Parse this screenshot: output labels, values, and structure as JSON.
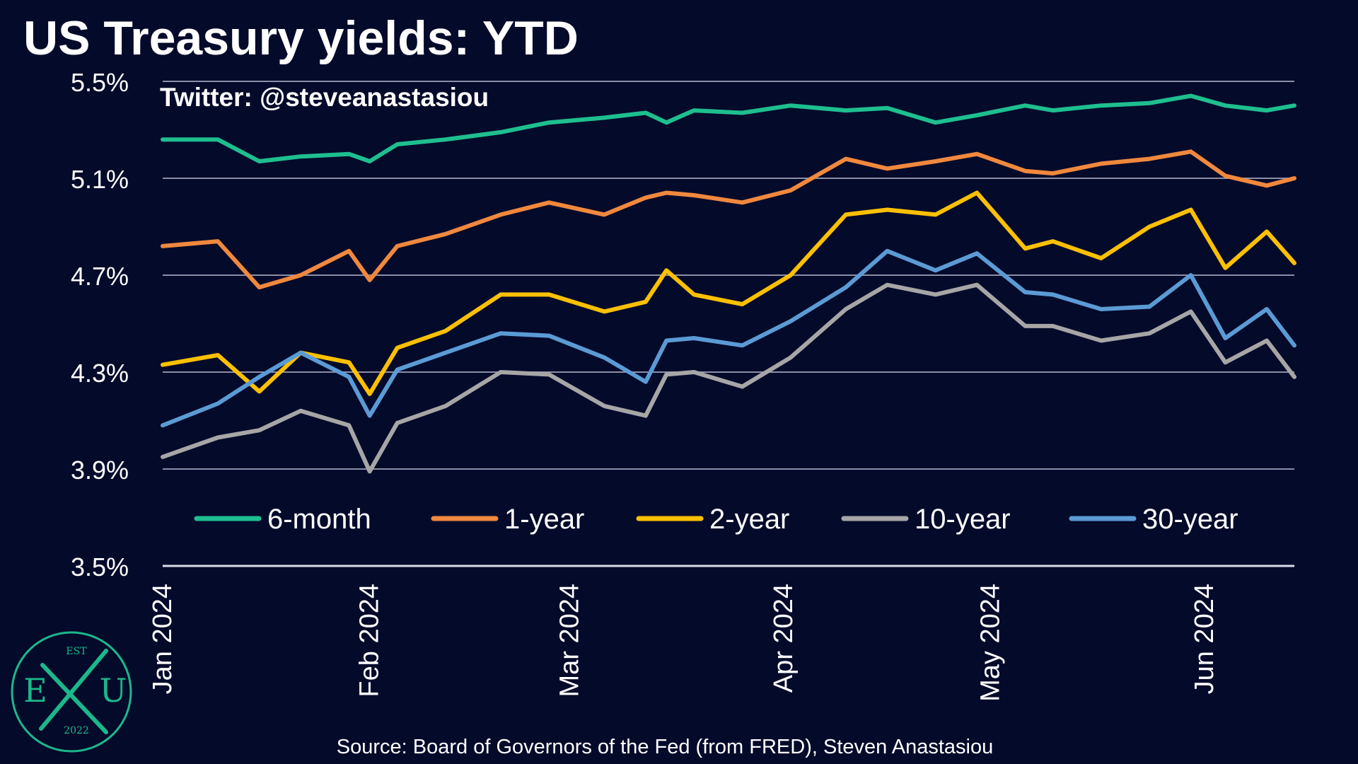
{
  "title": "US Treasury yields: YTD",
  "watermark": "Twitter: @steveanastasiou",
  "source": "Source: Board of Governors of the Fed (from FRED), Steven Anastasiou",
  "logo": {
    "top": "EST",
    "left": "E",
    "right": "U",
    "bottom": "2022"
  },
  "colors": {
    "background": "#040a2a",
    "grid": "#8a8fa6",
    "axis": "#d8dbe6",
    "logo": "#1bb88c"
  },
  "chart_data": {
    "type": "line",
    "title": "US Treasury yields: YTD",
    "xlabel": "",
    "ylabel": "",
    "ylim": [
      3.5,
      5.5
    ],
    "yticks": [
      3.5,
      3.9,
      4.3,
      4.7,
      5.1,
      5.5
    ],
    "ytick_labels": [
      "3.5%",
      "3.9%",
      "4.3%",
      "4.7%",
      "5.1%",
      "5.5%"
    ],
    "xlim": [
      "2024-01-02",
      "2024-06-14"
    ],
    "xticks": [
      "2024-01-01",
      "2024-02-01",
      "2024-03-01",
      "2024-04-01",
      "2024-05-01",
      "2024-06-01"
    ],
    "xtick_labels": [
      "Jan 2024",
      "Feb 2024",
      "Mar 2024",
      "Apr 2024",
      "May 2024",
      "Jun 2024"
    ],
    "grid": true,
    "legend_position": "bottom",
    "series": [
      {
        "name": "6-month",
        "color": "#1ebf8f",
        "points": [
          [
            "2024-01-02",
            5.26
          ],
          [
            "2024-01-10",
            5.26
          ],
          [
            "2024-01-16",
            5.17
          ],
          [
            "2024-01-22",
            5.19
          ],
          [
            "2024-01-29",
            5.2
          ],
          [
            "2024-02-01",
            5.17
          ],
          [
            "2024-02-05",
            5.24
          ],
          [
            "2024-02-12",
            5.26
          ],
          [
            "2024-02-20",
            5.29
          ],
          [
            "2024-02-27",
            5.33
          ],
          [
            "2024-03-06",
            5.35
          ],
          [
            "2024-03-12",
            5.37
          ],
          [
            "2024-03-15",
            5.33
          ],
          [
            "2024-03-19",
            5.38
          ],
          [
            "2024-03-26",
            5.37
          ],
          [
            "2024-04-02",
            5.4
          ],
          [
            "2024-04-10",
            5.38
          ],
          [
            "2024-04-16",
            5.39
          ],
          [
            "2024-04-23",
            5.33
          ],
          [
            "2024-04-29",
            5.36
          ],
          [
            "2024-05-06",
            5.4
          ],
          [
            "2024-05-10",
            5.38
          ],
          [
            "2024-05-17",
            5.4
          ],
          [
            "2024-05-24",
            5.41
          ],
          [
            "2024-05-30",
            5.44
          ],
          [
            "2024-06-04",
            5.4
          ],
          [
            "2024-06-10",
            5.38
          ],
          [
            "2024-06-14",
            5.4
          ]
        ]
      },
      {
        "name": "1-year",
        "color": "#f0883e",
        "points": [
          [
            "2024-01-02",
            4.82
          ],
          [
            "2024-01-10",
            4.84
          ],
          [
            "2024-01-16",
            4.65
          ],
          [
            "2024-01-22",
            4.7
          ],
          [
            "2024-01-29",
            4.8
          ],
          [
            "2024-02-01",
            4.68
          ],
          [
            "2024-02-05",
            4.82
          ],
          [
            "2024-02-12",
            4.87
          ],
          [
            "2024-02-20",
            4.95
          ],
          [
            "2024-02-27",
            5.0
          ],
          [
            "2024-03-06",
            4.95
          ],
          [
            "2024-03-12",
            5.02
          ],
          [
            "2024-03-15",
            5.04
          ],
          [
            "2024-03-19",
            5.03
          ],
          [
            "2024-03-26",
            5.0
          ],
          [
            "2024-04-02",
            5.05
          ],
          [
            "2024-04-10",
            5.18
          ],
          [
            "2024-04-16",
            5.14
          ],
          [
            "2024-04-23",
            5.17
          ],
          [
            "2024-04-29",
            5.2
          ],
          [
            "2024-05-06",
            5.13
          ],
          [
            "2024-05-10",
            5.12
          ],
          [
            "2024-05-17",
            5.16
          ],
          [
            "2024-05-24",
            5.18
          ],
          [
            "2024-05-30",
            5.21
          ],
          [
            "2024-06-04",
            5.11
          ],
          [
            "2024-06-10",
            5.07
          ],
          [
            "2024-06-14",
            5.1
          ]
        ]
      },
      {
        "name": "2-year",
        "color": "#ffc000",
        "points": [
          [
            "2024-01-02",
            4.33
          ],
          [
            "2024-01-10",
            4.37
          ],
          [
            "2024-01-16",
            4.22
          ],
          [
            "2024-01-22",
            4.38
          ],
          [
            "2024-01-29",
            4.34
          ],
          [
            "2024-02-01",
            4.21
          ],
          [
            "2024-02-05",
            4.4
          ],
          [
            "2024-02-12",
            4.47
          ],
          [
            "2024-02-20",
            4.62
          ],
          [
            "2024-02-27",
            4.62
          ],
          [
            "2024-03-06",
            4.55
          ],
          [
            "2024-03-12",
            4.59
          ],
          [
            "2024-03-15",
            4.72
          ],
          [
            "2024-03-19",
            4.62
          ],
          [
            "2024-03-26",
            4.58
          ],
          [
            "2024-04-02",
            4.7
          ],
          [
            "2024-04-10",
            4.95
          ],
          [
            "2024-04-16",
            4.97
          ],
          [
            "2024-04-23",
            4.95
          ],
          [
            "2024-04-29",
            5.04
          ],
          [
            "2024-05-06",
            4.81
          ],
          [
            "2024-05-10",
            4.84
          ],
          [
            "2024-05-17",
            4.77
          ],
          [
            "2024-05-24",
            4.9
          ],
          [
            "2024-05-30",
            4.97
          ],
          [
            "2024-06-04",
            4.73
          ],
          [
            "2024-06-10",
            4.88
          ],
          [
            "2024-06-14",
            4.75
          ]
        ]
      },
      {
        "name": "10-year",
        "color": "#a6a6a6",
        "points": [
          [
            "2024-01-02",
            3.95
          ],
          [
            "2024-01-10",
            4.03
          ],
          [
            "2024-01-16",
            4.06
          ],
          [
            "2024-01-22",
            4.14
          ],
          [
            "2024-01-29",
            4.08
          ],
          [
            "2024-02-01",
            3.89
          ],
          [
            "2024-02-05",
            4.09
          ],
          [
            "2024-02-12",
            4.16
          ],
          [
            "2024-02-20",
            4.3
          ],
          [
            "2024-02-27",
            4.29
          ],
          [
            "2024-03-06",
            4.16
          ],
          [
            "2024-03-12",
            4.12
          ],
          [
            "2024-03-15",
            4.29
          ],
          [
            "2024-03-19",
            4.3
          ],
          [
            "2024-03-26",
            4.24
          ],
          [
            "2024-04-02",
            4.36
          ],
          [
            "2024-04-10",
            4.56
          ],
          [
            "2024-04-16",
            4.66
          ],
          [
            "2024-04-23",
            4.62
          ],
          [
            "2024-04-29",
            4.66
          ],
          [
            "2024-05-06",
            4.49
          ],
          [
            "2024-05-10",
            4.49
          ],
          [
            "2024-05-17",
            4.43
          ],
          [
            "2024-05-24",
            4.46
          ],
          [
            "2024-05-30",
            4.55
          ],
          [
            "2024-06-04",
            4.34
          ],
          [
            "2024-06-10",
            4.43
          ],
          [
            "2024-06-14",
            4.28
          ]
        ]
      },
      {
        "name": "30-year",
        "color": "#5b9bd5",
        "points": [
          [
            "2024-01-02",
            4.08
          ],
          [
            "2024-01-10",
            4.17
          ],
          [
            "2024-01-16",
            4.28
          ],
          [
            "2024-01-22",
            4.38
          ],
          [
            "2024-01-29",
            4.28
          ],
          [
            "2024-02-01",
            4.12
          ],
          [
            "2024-02-05",
            4.31
          ],
          [
            "2024-02-12",
            4.38
          ],
          [
            "2024-02-20",
            4.46
          ],
          [
            "2024-02-27",
            4.45
          ],
          [
            "2024-03-06",
            4.36
          ],
          [
            "2024-03-12",
            4.26
          ],
          [
            "2024-03-15",
            4.43
          ],
          [
            "2024-03-19",
            4.44
          ],
          [
            "2024-03-26",
            4.41
          ],
          [
            "2024-04-02",
            4.51
          ],
          [
            "2024-04-10",
            4.65
          ],
          [
            "2024-04-16",
            4.8
          ],
          [
            "2024-04-23",
            4.72
          ],
          [
            "2024-04-29",
            4.79
          ],
          [
            "2024-05-06",
            4.63
          ],
          [
            "2024-05-10",
            4.62
          ],
          [
            "2024-05-17",
            4.56
          ],
          [
            "2024-05-24",
            4.57
          ],
          [
            "2024-05-30",
            4.7
          ],
          [
            "2024-06-04",
            4.44
          ],
          [
            "2024-06-10",
            4.56
          ],
          [
            "2024-06-14",
            4.41
          ]
        ]
      }
    ]
  }
}
